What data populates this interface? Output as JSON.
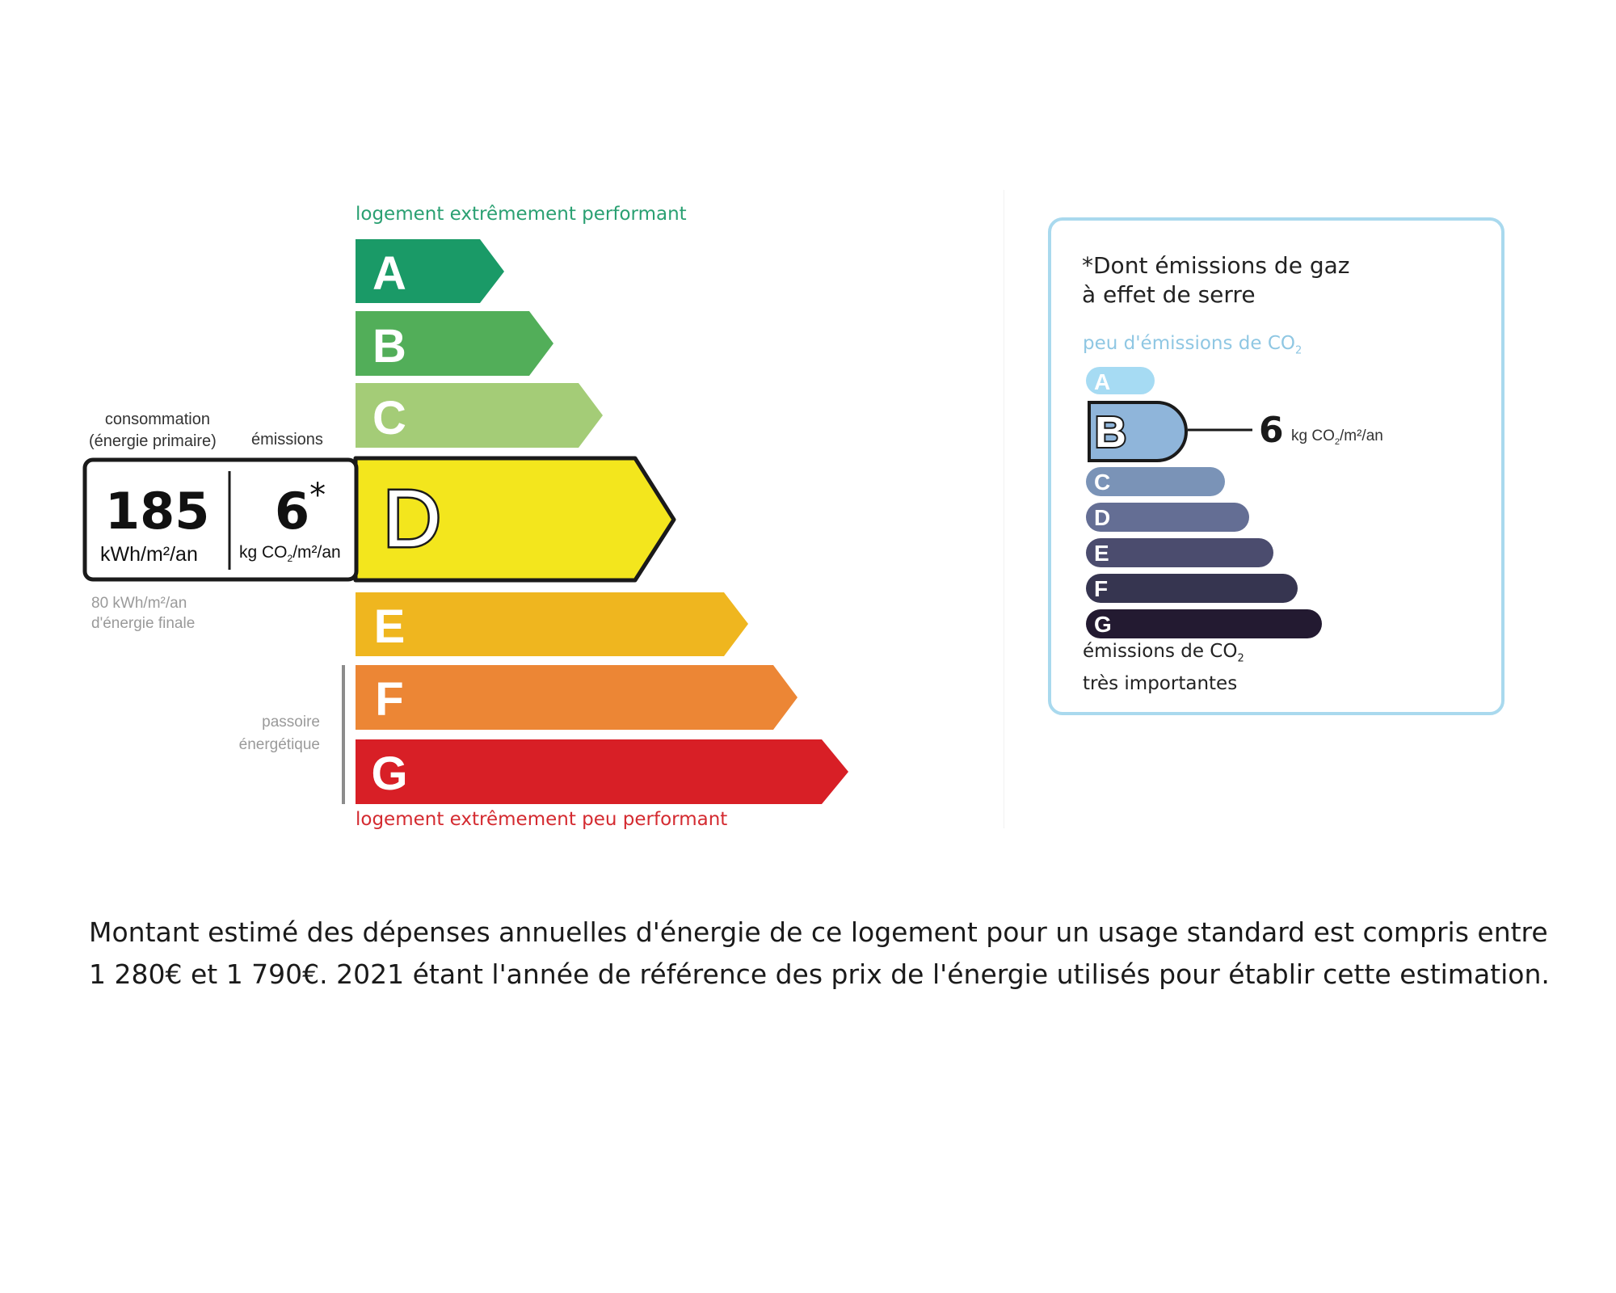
{
  "energy_label": {
    "top_caption": "logement extrêmement performant",
    "bottom_caption": "logement extrêmement peu performant",
    "classes": [
      {
        "letter": "A",
        "color": "#1a9a67"
      },
      {
        "letter": "B",
        "color": "#52ae59"
      },
      {
        "letter": "C",
        "color": "#a4cc77"
      },
      {
        "letter": "D",
        "color": "#f3e61d"
      },
      {
        "letter": "E",
        "color": "#efb61f"
      },
      {
        "letter": "F",
        "color": "#ec8635"
      },
      {
        "letter": "G",
        "color": "#d81f26"
      }
    ],
    "current_class": "D",
    "header_consumption_line1": "consommation",
    "header_consumption_line2": "(énergie primaire)",
    "header_emissions": "émissions",
    "consumption_value": "185",
    "consumption_unit": "kWh/m²/an",
    "emissions_value": "6",
    "emissions_asterisk": "*",
    "emissions_unit_prefix": "kg CO",
    "emissions_unit_sub": "2",
    "emissions_unit_suffix": "/m²/an",
    "final_energy_line1": "80 kWh/m²/an",
    "final_energy_line2": "d'énergie finale",
    "passoire_line1": "passoire",
    "passoire_line2": "énergétique"
  },
  "ges_label": {
    "title_asterisk": "*",
    "title_line1": "Dont émissions de gaz",
    "title_line2": "à effet de serre",
    "top_caption_prefix": "peu d'émissions de CO",
    "top_caption_sub": "2",
    "classes": [
      {
        "letter": "A",
        "color": "#a6dbf3"
      },
      {
        "letter": "B",
        "color": "#8fb5da"
      },
      {
        "letter": "C",
        "color": "#7a93b7"
      },
      {
        "letter": "D",
        "color": "#646e94"
      },
      {
        "letter": "E",
        "color": "#4b4c6e"
      },
      {
        "letter": "F",
        "color": "#363550"
      },
      {
        "letter": "G",
        "color": "#231a31"
      }
    ],
    "current_class": "B",
    "value": "6",
    "unit_prefix": "kg CO",
    "unit_sub": "2",
    "unit_suffix": "/m²/an",
    "bottom_caption_line1_prefix": "émissions de CO",
    "bottom_caption_line1_sub": "2",
    "bottom_caption_line2": "très importantes"
  },
  "description": {
    "line1": "Montant estimé des dépenses annuelles d'énergie de ce logement pour un usage standard est compris entre",
    "line2": "1 280€ et 1 790€. 2021 étant l'année de référence des prix de l'énergie utilisés pour établir cette estimation."
  }
}
